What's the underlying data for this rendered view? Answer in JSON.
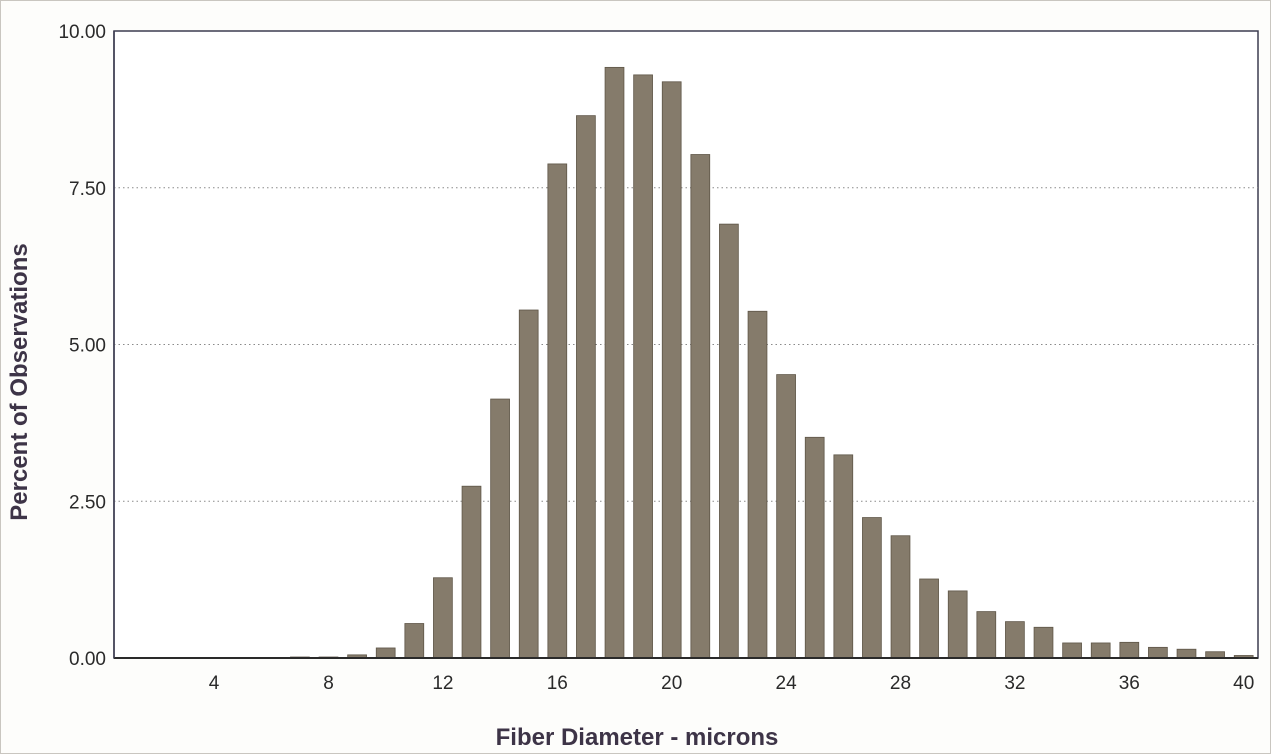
{
  "chart_data": {
    "type": "bar",
    "title": "",
    "xlabel": "Fiber Diameter - microns",
    "ylabel": "Percent of Observations",
    "xlim": [
      1,
      40
    ],
    "ylim": [
      0,
      10
    ],
    "x_ticks": [
      4,
      8,
      12,
      16,
      20,
      24,
      28,
      32,
      36,
      40
    ],
    "y_ticks": [
      "0.00",
      "2.50",
      "5.00",
      "7.50",
      "10.00"
    ],
    "grid": "horizontal dotted",
    "legend": "none",
    "bar_color": "#857b6b",
    "x": [
      7,
      8,
      9,
      10,
      11,
      12,
      13,
      14,
      15,
      16,
      17,
      18,
      19,
      20,
      21,
      22,
      23,
      24,
      25,
      26,
      27,
      28,
      29,
      30,
      31,
      32,
      33,
      34,
      35,
      36,
      37,
      38,
      39,
      40
    ],
    "values": [
      0.01,
      0.01,
      0.05,
      0.16,
      0.55,
      1.28,
      2.74,
      4.13,
      5.55,
      7.88,
      8.65,
      9.42,
      9.3,
      9.19,
      8.03,
      6.92,
      5.53,
      4.52,
      3.52,
      3.24,
      2.24,
      1.95,
      1.26,
      1.07,
      0.74,
      0.58,
      0.49,
      0.24,
      0.24,
      0.25,
      0.17,
      0.14,
      0.1,
      0.04
    ]
  }
}
